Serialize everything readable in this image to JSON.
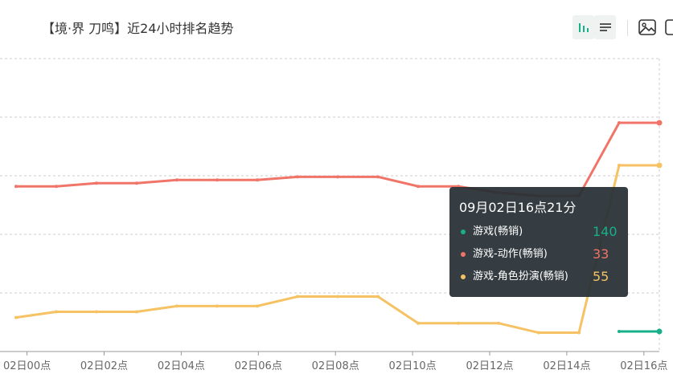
{
  "title": "【境·界 刀鸣】近24小时排名趋势",
  "toolbar": {
    "buttons": [
      {
        "name": "bar-chart-toggle-button",
        "icon": "bar-chart-icon",
        "active": true
      },
      {
        "name": "list-view-button",
        "icon": "list-icon",
        "active": false
      },
      {
        "name": "save-image-button",
        "icon": "image-icon",
        "active": false
      },
      {
        "name": "export-button",
        "icon": "export-icon",
        "active": false
      }
    ]
  },
  "colors": {
    "game": "#17b08a",
    "action": "#f07568",
    "rpg": "#f6c263",
    "grid": "#cccccc",
    "axis": "#999999"
  },
  "chart_data": {
    "type": "line",
    "y_inverse": true,
    "x_tick_labels": [
      "02日00点",
      "02日02点",
      "02日04点",
      "02日06点",
      "02日08点",
      "02日10点",
      "02日12点",
      "02日14点",
      "02日16点"
    ],
    "x_tick_hours": [
      0,
      2,
      4,
      6,
      8,
      10,
      12,
      14,
      16
    ],
    "x_range_hours": [
      -0.7,
      16.4
    ],
    "series": [
      {
        "name": "游戏(畅销)",
        "color_key": "game",
        "points": [
          [
            15,
            140
          ],
          [
            16,
            140
          ]
        ]
      },
      {
        "name": "游戏-动作(畅销)",
        "color_key": "action",
        "points": [
          [
            0,
            53
          ],
          [
            1,
            53
          ],
          [
            2,
            52
          ],
          [
            3,
            52
          ],
          [
            4,
            51
          ],
          [
            5,
            51
          ],
          [
            6,
            51
          ],
          [
            7,
            50
          ],
          [
            8,
            50
          ],
          [
            9,
            50
          ],
          [
            10,
            53
          ],
          [
            11,
            53
          ],
          [
            12,
            55
          ],
          [
            13,
            56
          ],
          [
            14,
            56
          ],
          [
            15,
            56
          ],
          [
            16,
            33
          ],
          [
            17,
            33
          ]
        ]
      },
      {
        "name": "游戏-角色扮演(畅销)",
        "color_key": "rpg",
        "points": [
          [
            0,
            135
          ],
          [
            1,
            132
          ],
          [
            2,
            132
          ],
          [
            3,
            132
          ],
          [
            4,
            129
          ],
          [
            5,
            129
          ],
          [
            6,
            129
          ],
          [
            7,
            124
          ],
          [
            8,
            124
          ],
          [
            9,
            124
          ],
          [
            10,
            138
          ],
          [
            11,
            138
          ],
          [
            12,
            138
          ],
          [
            13,
            143
          ],
          [
            14,
            143
          ],
          [
            15,
            143
          ],
          [
            16,
            55
          ],
          [
            17,
            55
          ]
        ]
      }
    ],
    "tooltip": {
      "time": "09月02日16点21分",
      "rows": [
        {
          "name": "游戏(畅销)",
          "value": "140",
          "color_key": "game"
        },
        {
          "name": "游戏-动作(畅销)",
          "value": "33",
          "color_key": "action"
        },
        {
          "name": "游戏-角色扮演(畅销)",
          "value": "55",
          "color_key": "rpg"
        }
      ]
    }
  }
}
